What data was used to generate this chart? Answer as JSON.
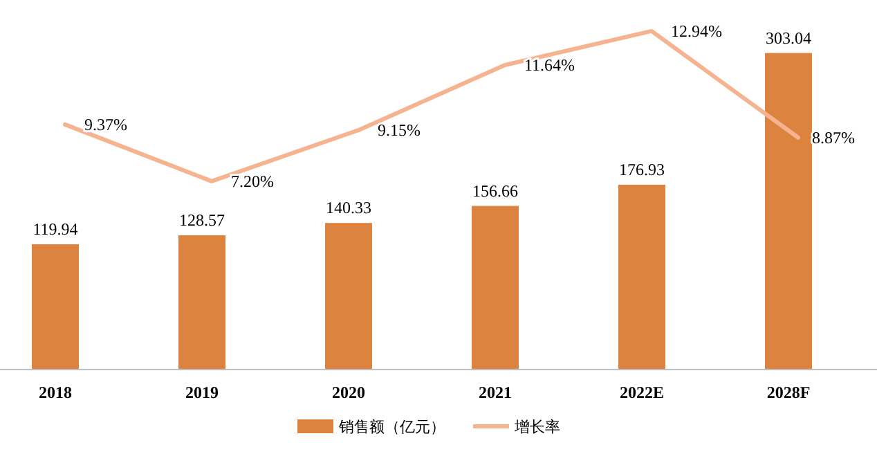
{
  "chart_data": {
    "type": "bar",
    "categories": [
      "2018",
      "2019",
      "2020",
      "2021",
      "2022E",
      "2028F"
    ],
    "series": [
      {
        "name": "销售额（亿元）",
        "color": "#dc843f",
        "values": [
          119.94,
          128.57,
          140.33,
          156.66,
          176.93,
          303.04
        ]
      },
      {
        "name": "增长率",
        "type": "line",
        "axis": "y2",
        "color": "#f5b48f",
        "values": [
          9.37,
          7.2,
          9.15,
          11.64,
          12.94,
          8.87
        ],
        "value_labels": [
          "9.37%",
          "7.20%",
          "9.15%",
          "11.64%",
          "12.94%",
          "8.87%"
        ]
      }
    ],
    "data_labels": true,
    "legend": "bottom",
    "marker": "none",
    "line_style": "solid"
  }
}
